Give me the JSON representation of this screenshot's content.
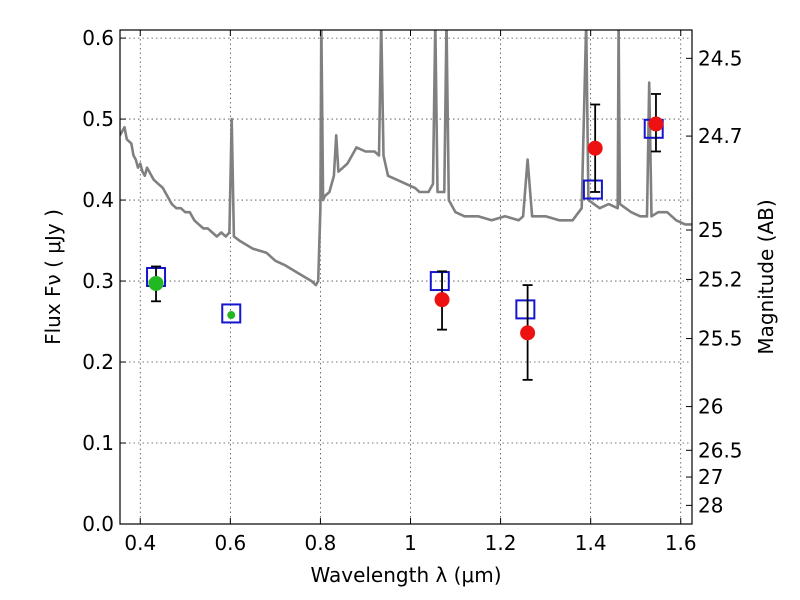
{
  "chart_data": {
    "type": "scatter",
    "xlabel": "Wavelength  λ (μm)",
    "ylabel": "Flux  Fν  ( μJy )",
    "y2label": "Magnitude (AB)",
    "xlim": [
      0.355,
      1.625
    ],
    "ylim": [
      0.0,
      0.61
    ],
    "grid": true,
    "x_ticks": [
      {
        "v": 0.4,
        "label": "0.4"
      },
      {
        "v": 0.6,
        "label": "0.6"
      },
      {
        "v": 0.8,
        "label": "0.8"
      },
      {
        "v": 1.0,
        "label": "1"
      },
      {
        "v": 1.2,
        "label": "1.2"
      },
      {
        "v": 1.4,
        "label": "1.4"
      },
      {
        "v": 1.6,
        "label": "1.6"
      }
    ],
    "y_ticks": [
      {
        "v": 0.0,
        "label": "0.0"
      },
      {
        "v": 0.1,
        "label": "0.1"
      },
      {
        "v": 0.2,
        "label": "0.2"
      },
      {
        "v": 0.3,
        "label": "0.3"
      },
      {
        "v": 0.4,
        "label": "0.4"
      },
      {
        "v": 0.5,
        "label": "0.5"
      },
      {
        "v": 0.6,
        "label": "0.6"
      }
    ],
    "y2_ticks": [
      {
        "label": "24.5",
        "flux": 0.575
      },
      {
        "label": "24.7",
        "flux": 0.479
      },
      {
        "label": "25",
        "flux": 0.363
      },
      {
        "label": "25.2",
        "flux": 0.302
      },
      {
        "label": "25.5",
        "flux": 0.229
      },
      {
        "label": "26",
        "flux": 0.145
      },
      {
        "label": "26.5",
        "flux": 0.091
      },
      {
        "label": "27",
        "flux": 0.058
      },
      {
        "label": "28",
        "flux": 0.023
      }
    ],
    "series": [
      {
        "kind": "spectrum",
        "color": "#808080",
        "points": [
          [
            0.355,
            0.48
          ],
          [
            0.365,
            0.49
          ],
          [
            0.37,
            0.475
          ],
          [
            0.38,
            0.47
          ],
          [
            0.385,
            0.455
          ],
          [
            0.39,
            0.45
          ],
          [
            0.395,
            0.44
          ],
          [
            0.4,
            0.445
          ],
          [
            0.405,
            0.435
          ],
          [
            0.41,
            0.43
          ],
          [
            0.415,
            0.44
          ],
          [
            0.42,
            0.435
          ],
          [
            0.425,
            0.43
          ],
          [
            0.43,
            0.425
          ],
          [
            0.44,
            0.42
          ],
          [
            0.45,
            0.415
          ],
          [
            0.46,
            0.405
          ],
          [
            0.47,
            0.395
          ],
          [
            0.48,
            0.39
          ],
          [
            0.49,
            0.39
          ],
          [
            0.5,
            0.385
          ],
          [
            0.51,
            0.385
          ],
          [
            0.52,
            0.375
          ],
          [
            0.53,
            0.37
          ],
          [
            0.54,
            0.365
          ],
          [
            0.55,
            0.365
          ],
          [
            0.56,
            0.36
          ],
          [
            0.57,
            0.355
          ],
          [
            0.58,
            0.36
          ],
          [
            0.59,
            0.355
          ],
          [
            0.598,
            0.36
          ],
          [
            0.603,
            0.5
          ],
          [
            0.608,
            0.355
          ],
          [
            0.62,
            0.35
          ],
          [
            0.65,
            0.34
          ],
          [
            0.68,
            0.335
          ],
          [
            0.7,
            0.325
          ],
          [
            0.72,
            0.32
          ],
          [
            0.75,
            0.31
          ],
          [
            0.78,
            0.3
          ],
          [
            0.79,
            0.295
          ],
          [
            0.795,
            0.3
          ],
          [
            0.8,
            0.39
          ],
          [
            0.802,
            0.62
          ],
          [
            0.806,
            0.4
          ],
          [
            0.81,
            0.405
          ],
          [
            0.82,
            0.41
          ],
          [
            0.83,
            0.43
          ],
          [
            0.835,
            0.48
          ],
          [
            0.84,
            0.435
          ],
          [
            0.86,
            0.445
          ],
          [
            0.87,
            0.455
          ],
          [
            0.88,
            0.465
          ],
          [
            0.9,
            0.46
          ],
          [
            0.92,
            0.46
          ],
          [
            0.93,
            0.455
          ],
          [
            0.935,
            0.62
          ],
          [
            0.94,
            0.455
          ],
          [
            0.95,
            0.43
          ],
          [
            0.97,
            0.425
          ],
          [
            0.99,
            0.42
          ],
          [
            1.01,
            0.415
          ],
          [
            1.02,
            0.41
          ],
          [
            1.04,
            0.41
          ],
          [
            1.05,
            0.42
          ],
          [
            1.055,
            0.62
          ],
          [
            1.06,
            0.41
          ],
          [
            1.075,
            0.41
          ],
          [
            1.08,
            0.62
          ],
          [
            1.085,
            0.4
          ],
          [
            1.1,
            0.385
          ],
          [
            1.12,
            0.38
          ],
          [
            1.15,
            0.38
          ],
          [
            1.18,
            0.375
          ],
          [
            1.21,
            0.38
          ],
          [
            1.24,
            0.375
          ],
          [
            1.25,
            0.38
          ],
          [
            1.26,
            0.45
          ],
          [
            1.27,
            0.38
          ],
          [
            1.3,
            0.38
          ],
          [
            1.33,
            0.375
          ],
          [
            1.36,
            0.375
          ],
          [
            1.38,
            0.39
          ],
          [
            1.39,
            0.62
          ],
          [
            1.395,
            0.4
          ],
          [
            1.42,
            0.39
          ],
          [
            1.44,
            0.395
          ],
          [
            1.46,
            0.39
          ],
          [
            1.462,
            0.62
          ],
          [
            1.465,
            0.395
          ],
          [
            1.49,
            0.385
          ],
          [
            1.51,
            0.38
          ],
          [
            1.525,
            0.38
          ],
          [
            1.53,
            0.545
          ],
          [
            1.535,
            0.38
          ],
          [
            1.55,
            0.385
          ],
          [
            1.57,
            0.385
          ],
          [
            1.59,
            0.375
          ],
          [
            1.61,
            0.37
          ],
          [
            1.625,
            0.37
          ]
        ]
      },
      {
        "kind": "model-squares",
        "color": "#1515d0",
        "points": [
          [
            0.435,
            0.305
          ],
          [
            0.602,
            0.26
          ],
          [
            1.065,
            0.3
          ],
          [
            1.255,
            0.265
          ],
          [
            1.405,
            0.413
          ],
          [
            1.54,
            0.488
          ]
        ]
      },
      {
        "kind": "observed-red",
        "color": "#ee1111",
        "points": [
          {
            "x": 1.07,
            "y": 0.277,
            "lo": 0.24,
            "hi": 0.312
          },
          {
            "x": 1.26,
            "y": 0.236,
            "lo": 0.178,
            "hi": 0.295
          },
          {
            "x": 1.41,
            "y": 0.464,
            "lo": 0.41,
            "hi": 0.518
          },
          {
            "x": 1.545,
            "y": 0.494,
            "lo": 0.46,
            "hi": 0.531
          }
        ]
      },
      {
        "kind": "observed-green",
        "color": "#22b822",
        "points": [
          {
            "x": 0.435,
            "y": 0.297,
            "lo": 0.275,
            "hi": 0.318
          },
          {
            "x": 0.602,
            "y": 0.258,
            "lo": 0.258,
            "hi": 0.258
          }
        ]
      }
    ]
  }
}
